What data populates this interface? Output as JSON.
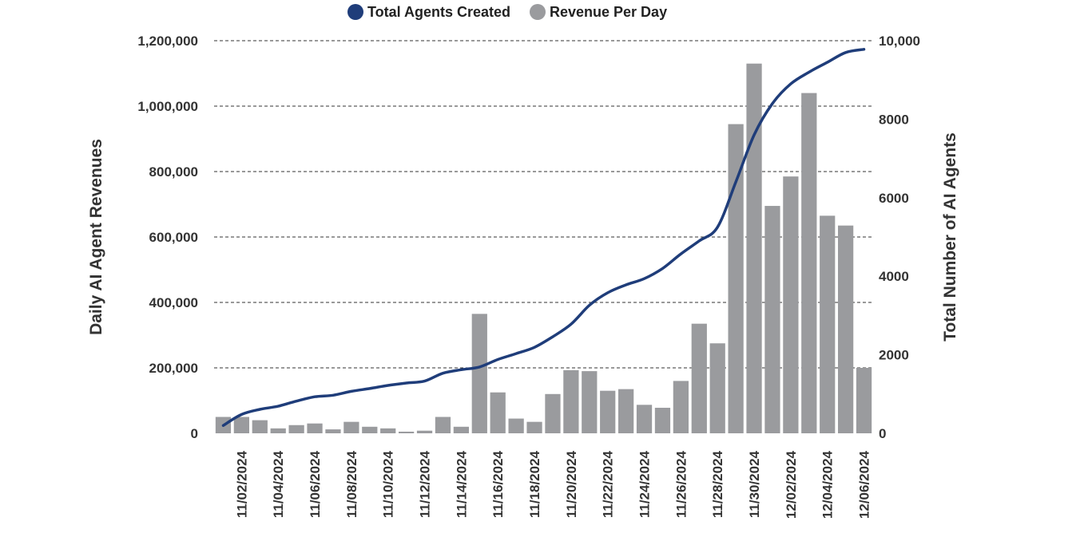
{
  "chart_data": {
    "type": "bar",
    "colors": {
      "bar": "#9a9b9e",
      "line": "#1f3d7a"
    },
    "legend": {
      "position": "top-center"
    },
    "grid": true,
    "categories": [
      "11/01/2024",
      "11/02/2024",
      "11/03/2024",
      "11/04/2024",
      "11/05/2024",
      "11/06/2024",
      "11/07/2024",
      "11/08/2024",
      "11/09/2024",
      "11/10/2024",
      "11/11/2024",
      "11/12/2024",
      "11/13/2024",
      "11/14/2024",
      "11/15/2024",
      "11/16/2024",
      "11/17/2024",
      "11/18/2024",
      "11/19/2024",
      "11/20/2024",
      "11/21/2024",
      "11/22/2024",
      "11/23/2024",
      "11/24/2024",
      "11/25/2024",
      "11/26/2024",
      "11/27/2024",
      "11/28/2024",
      "11/29/2024",
      "11/30/2024",
      "12/01/2024",
      "12/02/2024",
      "12/03/2024",
      "12/04/2024",
      "12/05/2024",
      "12/06/2024"
    ],
    "x_tick_labels": [
      "11/02/2024",
      "11/04/2024",
      "11/06/2024",
      "11/08/2024",
      "11/10/2024",
      "11/12/2024",
      "11/14/2024",
      "11/16/2024",
      "11/18/2024",
      "11/20/2024",
      "11/22/2024",
      "11/24/2024",
      "11/26/2024",
      "11/28/2024",
      "11/30/2024",
      "12/02/2024",
      "12/04/2024",
      "12/06/2024"
    ],
    "series": [
      {
        "name": "Revenue Per Day",
        "type": "bar",
        "axis": "left",
        "values": [
          50000,
          50000,
          40000,
          15000,
          25000,
          30000,
          12000,
          35000,
          20000,
          15000,
          5000,
          8000,
          50000,
          20000,
          365000,
          125000,
          45000,
          35000,
          120000,
          193000,
          190000,
          130000,
          135000,
          87000,
          78000,
          160000,
          335000,
          275000,
          945000,
          1130000,
          695000,
          785000,
          1040000,
          665000,
          635000,
          200000
        ]
      },
      {
        "name": "Total Agents Created",
        "type": "line",
        "axis": "right",
        "values": [
          200,
          480,
          610,
          690,
          820,
          930,
          970,
          1070,
          1140,
          1220,
          1280,
          1330,
          1530,
          1620,
          1690,
          1880,
          2030,
          2190,
          2460,
          2780,
          3260,
          3580,
          3780,
          3940,
          4200,
          4570,
          4900,
          5250,
          6400,
          7600,
          8400,
          8900,
          9200,
          9450,
          9700,
          9780
        ]
      }
    ],
    "ylabel": "Daily AI Agent Revenues",
    "ylim": [
      0,
      1200000
    ],
    "y_ticks": [
      "0",
      "200,000",
      "400,000",
      "600,000",
      "800,000",
      "1,000,000",
      "1,200,000"
    ],
    "y2label": "Total Number of AI Agents",
    "y2lim": [
      0,
      10000
    ],
    "y2_ticks": [
      "0",
      "2000",
      "4000",
      "6000",
      "8000",
      "10,000"
    ]
  }
}
